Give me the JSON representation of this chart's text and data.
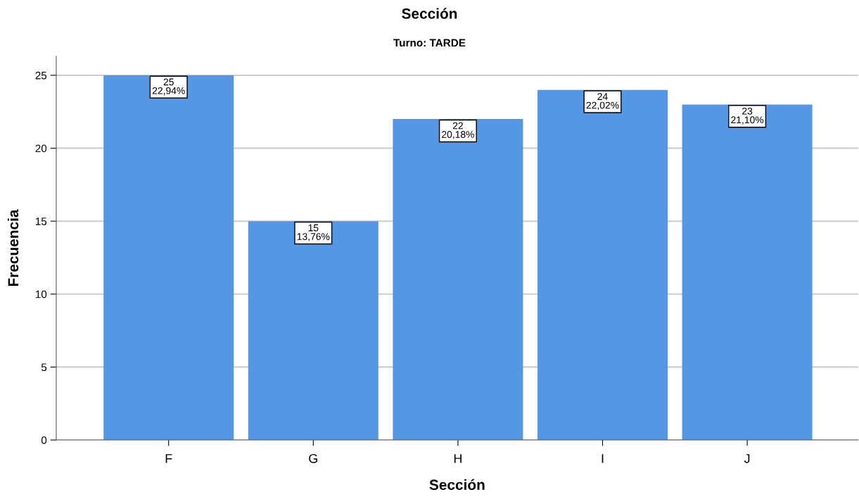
{
  "chart_data": {
    "type": "bar",
    "title": "Sección",
    "subtitle": "Turno: TARDE",
    "xlabel": "Sección",
    "ylabel": "Frecuencia",
    "categories": [
      "F",
      "G",
      "H",
      "I",
      "J"
    ],
    "values": [
      25,
      15,
      22,
      24,
      23
    ],
    "value_labels": [
      "25\n22,94%",
      "15\n13,76%",
      "22\n20,18%",
      "24\n22,02%",
      "23\n21,10%"
    ],
    "color": "#5596e5",
    "ylim": [
      0,
      26.3
    ],
    "yticks": [
      0,
      5,
      10,
      15,
      20,
      25
    ],
    "grid": "y",
    "legend": false
  }
}
